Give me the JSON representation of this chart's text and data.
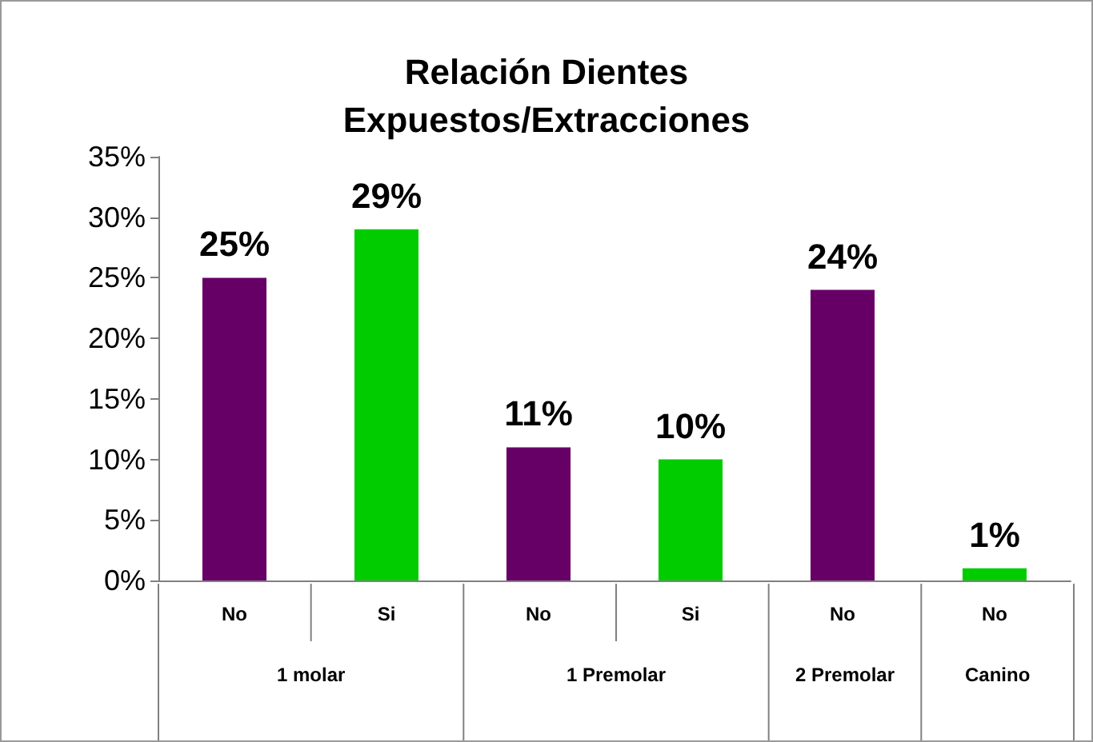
{
  "chart_data": {
    "type": "bar",
    "title": "Relación Dientes\nExpuestos/Extracciones",
    "categories": [
      "No",
      "Si",
      "No",
      "Si",
      "No",
      "No"
    ],
    "values": [
      25,
      29,
      11,
      10,
      24,
      1
    ],
    "colors": [
      "#660066",
      "#00cc00",
      "#660066",
      "#00cc00",
      "#660066",
      "#00cc00"
    ],
    "value_labels": [
      "25%",
      "29%",
      "11%",
      "10%",
      "24%",
      "1%"
    ],
    "annotations": [
      "1 molar",
      "1 Premolar",
      "2 Premolar",
      "Canino"
    ],
    "ylim": [
      0,
      35
    ],
    "yticks": [
      {
        "value": 0,
        "label": "0%"
      },
      {
        "value": 5,
        "label": "5%"
      },
      {
        "value": 10,
        "label": "10%"
      },
      {
        "value": 15,
        "label": "15%"
      },
      {
        "value": 20,
        "label": "20%"
      },
      {
        "value": 25,
        "label": "25%"
      },
      {
        "value": 30,
        "label": "30%"
      },
      {
        "value": 35,
        "label": "35%"
      }
    ],
    "grid": false
  }
}
